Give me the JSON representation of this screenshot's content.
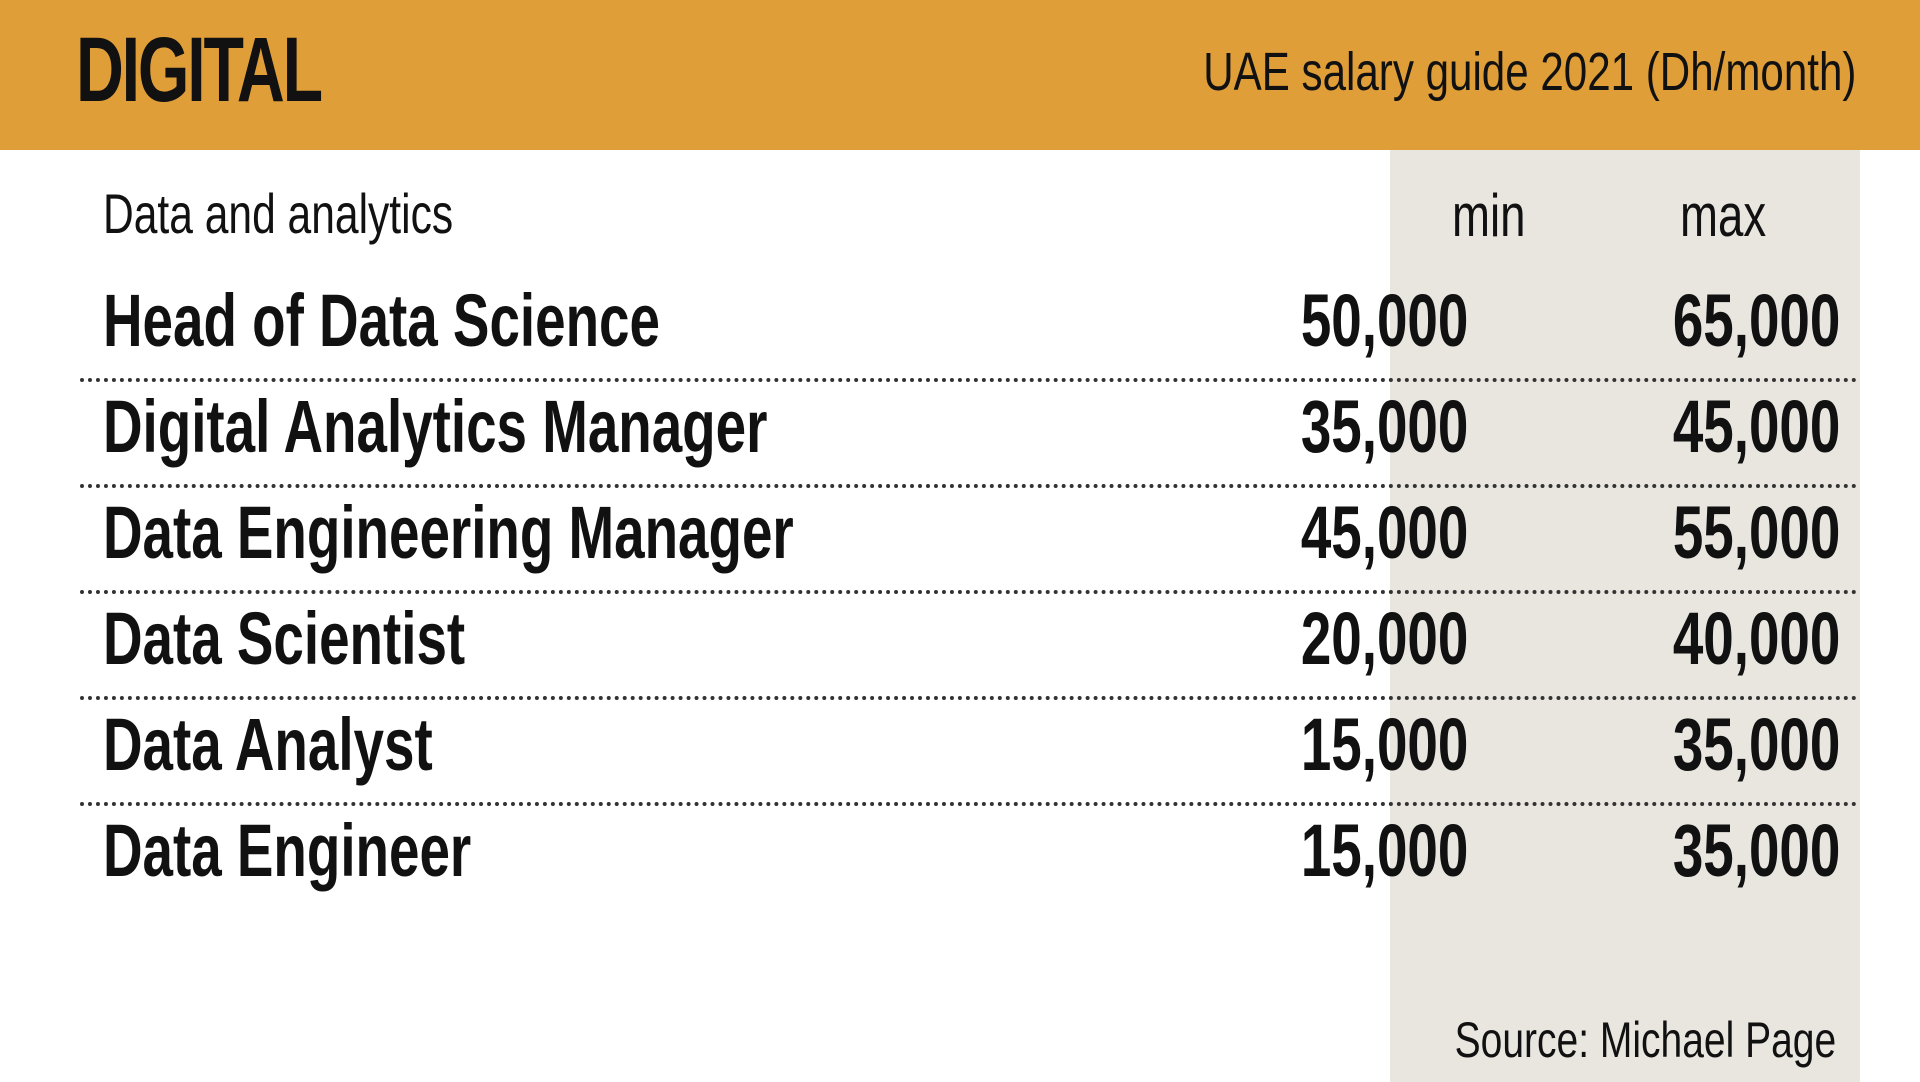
{
  "header": {
    "title": "DIGITAL",
    "subtitle": "UAE salary guide 2021 (Dh/month)"
  },
  "colors": {
    "header_bg": "#e09e38",
    "value_panel_bg": "#e9e6e0"
  },
  "table": {
    "section_label": "Data and analytics",
    "min_label": "min",
    "max_label": "max",
    "rows": [
      {
        "job": "Head of Data Science",
        "min": "50,000",
        "max": "65,000"
      },
      {
        "job": "Digital Analytics Manager",
        "min": "35,000",
        "max": "45,000"
      },
      {
        "job": "Data Engineering Manager",
        "min": "45,000",
        "max": "55,000"
      },
      {
        "job": "Data Scientist",
        "min": "20,000",
        "max": "40,000"
      },
      {
        "job": "Data Analyst",
        "min": "15,000",
        "max": "35,000"
      },
      {
        "job": "Data Engineer",
        "min": "15,000",
        "max": "35,000"
      }
    ]
  },
  "source": "Source: Michael Page",
  "chart_data": {
    "type": "table",
    "title": "DIGITAL",
    "subtitle": "UAE salary guide 2021 (Dh/month)",
    "categories": [
      "Head of Data Science",
      "Digital Analytics Manager",
      "Data Engineering Manager",
      "Data Scientist",
      "Data Analyst",
      "Data Engineer"
    ],
    "series": [
      {
        "name": "min",
        "values": [
          50000,
          35000,
          45000,
          20000,
          15000,
          15000
        ]
      },
      {
        "name": "max",
        "values": [
          65000,
          45000,
          55000,
          40000,
          35000,
          35000
        ]
      }
    ]
  }
}
